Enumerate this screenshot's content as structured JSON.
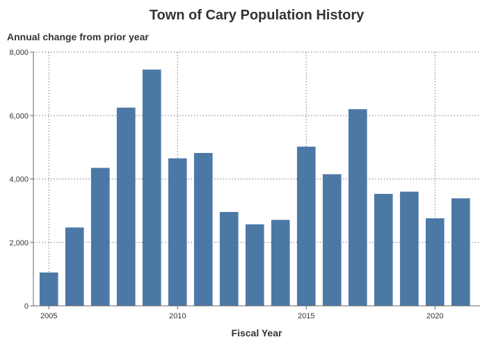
{
  "chart_data": {
    "type": "bar",
    "title": "Town of Cary Population History",
    "subtitle": "Annual change from prior year",
    "xlabel": "Fiscal Year",
    "ylabel": "",
    "x": [
      2005,
      2006,
      2007,
      2008,
      2009,
      2010,
      2011,
      2012,
      2013,
      2014,
      2015,
      2016,
      2017,
      2018,
      2019,
      2020,
      2021
    ],
    "values": [
      1050,
      2470,
      4350,
      6250,
      7450,
      4650,
      4820,
      2960,
      2570,
      2710,
      5020,
      4150,
      6200,
      3530,
      3600,
      2760,
      3390
    ],
    "ylim": [
      0,
      8000
    ],
    "yticks": [
      0,
      2000,
      4000,
      6000,
      8000
    ],
    "ytick_labels": [
      "0",
      "2,000",
      "4,000",
      "6,000",
      "8,000"
    ],
    "xticks": [
      2005,
      2010,
      2015,
      2020
    ],
    "xtick_labels": [
      "2005",
      "2010",
      "2015",
      "2020"
    ],
    "grid": true,
    "legend": "none",
    "bar_color": "#4C78A6",
    "grid_color": "#555555"
  }
}
